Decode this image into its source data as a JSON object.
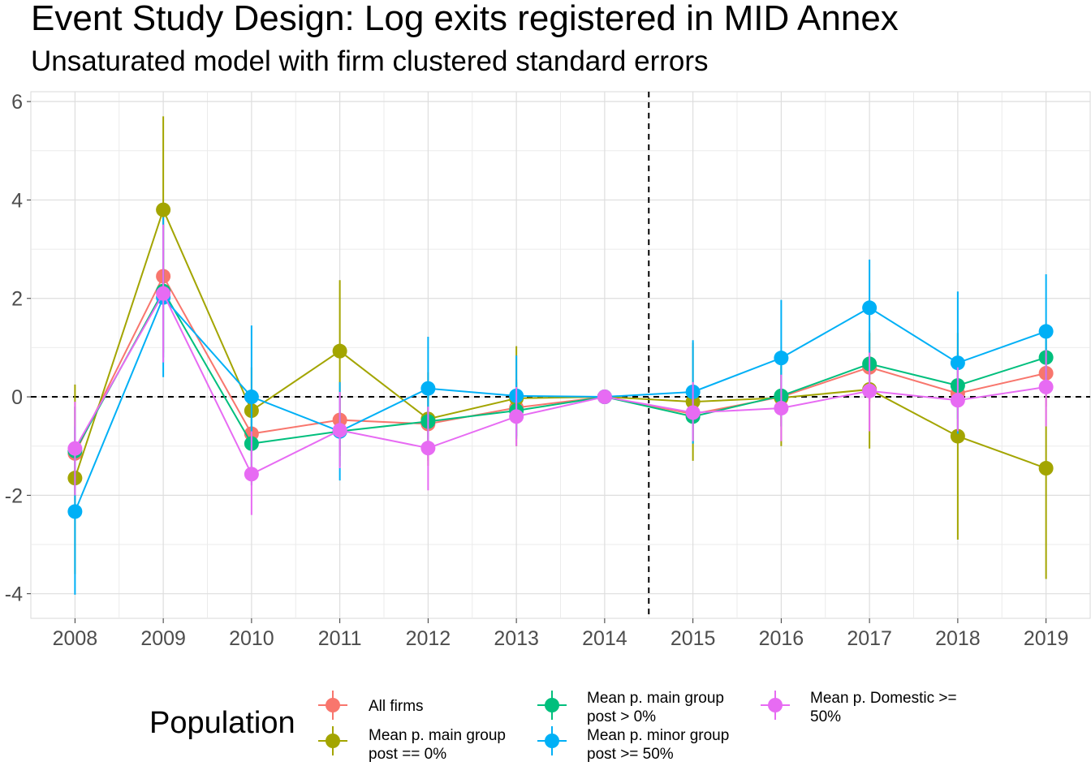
{
  "title": "Event Study Design: Log exits registered in MID Annex",
  "subtitle": "Unsaturated model with firm clustered standard errors",
  "chart_data": {
    "type": "line",
    "x": [
      2008,
      2009,
      2010,
      2011,
      2012,
      2013,
      2014,
      2015,
      2016,
      2017,
      2018,
      2019
    ],
    "xlim": [
      2007.5,
      2019.5
    ],
    "ylim": [
      -4.5,
      6.2
    ],
    "y_ticks": [
      -4,
      -2,
      0,
      2,
      4,
      6
    ],
    "reference_lines": {
      "y": 0,
      "x": 2014.5,
      "style": "dashed"
    },
    "grid": true,
    "legend_title": "Population",
    "legend_position": "bottom",
    "series": [
      {
        "name": "All firms",
        "color": "#F8766D",
        "values": [
          -1.15,
          2.45,
          -0.75,
          -0.47,
          -0.55,
          -0.22,
          0.0,
          -0.35,
          0.0,
          0.6,
          0.07,
          0.48
        ],
        "ci_low": [
          -2.1,
          0.9,
          -1.6,
          -1.2,
          -1.3,
          -0.8,
          0.0,
          -0.9,
          -0.6,
          -0.1,
          -0.6,
          -0.2
        ],
        "ci_high": [
          -0.2,
          3.9,
          0.1,
          0.3,
          0.2,
          0.35,
          0.0,
          0.2,
          0.6,
          1.3,
          0.75,
          1.15
        ]
      },
      {
        "name": "Mean p. main group post == 0%",
        "color": "#A3A500",
        "values": [
          -1.65,
          3.8,
          -0.28,
          0.93,
          -0.45,
          -0.03,
          0.0,
          -0.1,
          -0.02,
          0.15,
          -0.8,
          -1.45
        ],
        "ci_low": [
          -3.6,
          1.9,
          -1.2,
          -0.5,
          -1.4,
          -1.0,
          0.0,
          -1.3,
          -1.0,
          -1.05,
          -2.9,
          -3.7
        ],
        "ci_high": [
          0.25,
          5.7,
          0.6,
          2.37,
          0.5,
          1.03,
          0.0,
          1.1,
          0.9,
          1.3,
          1.3,
          0.8
        ]
      },
      {
        "name": "Mean p. main group post > 0%",
        "color": "#00BF7D",
        "values": [
          -1.1,
          2.15,
          -0.95,
          -0.7,
          -0.5,
          -0.28,
          0.0,
          -0.4,
          0.02,
          0.67,
          0.23,
          0.8
        ],
        "ci_low": [
          -2.0,
          0.8,
          -1.8,
          -1.4,
          -1.2,
          -0.85,
          0.0,
          -0.95,
          -0.6,
          0.0,
          -0.45,
          0.15
        ],
        "ci_high": [
          -0.2,
          3.5,
          -0.1,
          0.0,
          0.2,
          0.3,
          0.0,
          0.15,
          0.65,
          1.35,
          0.9,
          1.45
        ]
      },
      {
        "name": "Mean p. minor group post >= 50%",
        "color": "#00B0F6",
        "values": [
          -2.33,
          2.02,
          0.0,
          -0.7,
          0.17,
          0.02,
          0.0,
          0.1,
          0.79,
          1.81,
          0.69,
          1.33
        ],
        "ci_low": [
          -4.02,
          0.4,
          -1.4,
          -1.7,
          -0.88,
          -0.8,
          0.0,
          -0.95,
          -0.4,
          0.85,
          -0.75,
          0.2
        ],
        "ci_high": [
          -0.6,
          3.65,
          1.45,
          0.3,
          1.22,
          0.84,
          0.0,
          1.15,
          1.97,
          2.79,
          2.14,
          2.49
        ]
      },
      {
        "name": "Mean p. Domestic >= 50%",
        "color": "#E76BF3",
        "values": [
          -1.05,
          2.1,
          -1.57,
          -0.68,
          -1.04,
          -0.4,
          0.0,
          -0.32,
          -0.23,
          0.12,
          -0.07,
          0.2
        ],
        "ci_low": [
          -2.0,
          0.7,
          -2.4,
          -1.45,
          -1.9,
          -1.0,
          0.0,
          -0.9,
          -0.9,
          -0.7,
          -0.7,
          -0.6
        ],
        "ci_high": [
          -0.1,
          3.5,
          -0.7,
          0.1,
          -0.2,
          0.2,
          0.0,
          0.3,
          0.45,
          0.9,
          0.6,
          0.95
        ]
      }
    ],
    "legend_labels": [
      [
        "All firms"
      ],
      [
        "Mean p. main group",
        "post == 0%"
      ],
      [
        "Mean p. main group",
        "post > 0%"
      ],
      [
        "Mean p. minor group",
        "post >= 50%"
      ],
      [
        "Mean p. Domestic >=",
        "50%"
      ]
    ]
  }
}
